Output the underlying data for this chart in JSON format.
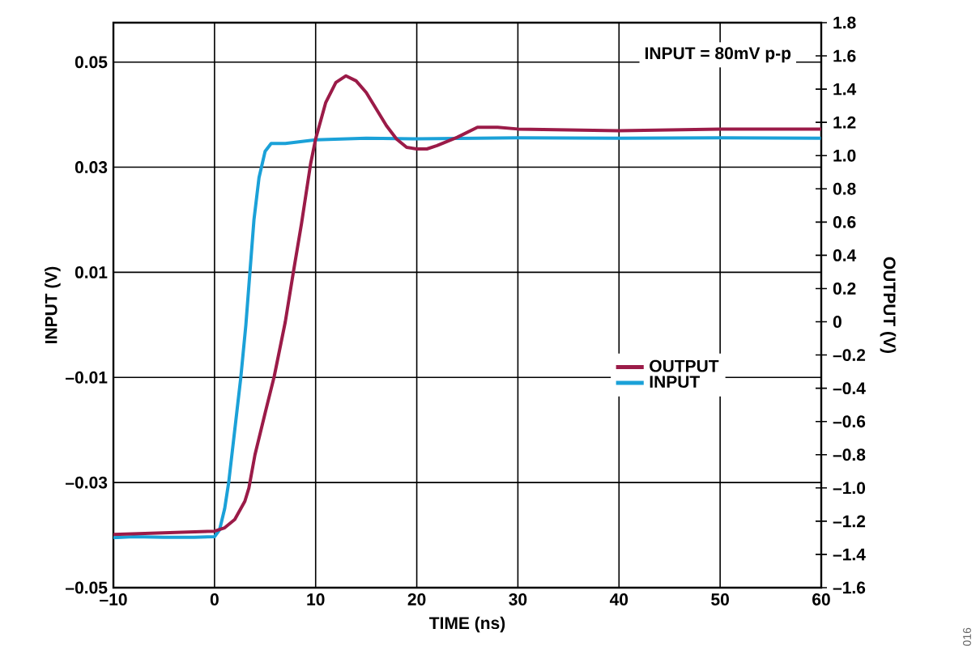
{
  "chart_data": {
    "type": "line",
    "xlabel": "TIME (ns)",
    "ylabel": "INPUT (V)",
    "y2label": "OUTPUT (V)",
    "annotations": [
      "INPUT = 80mV p-p",
      "016"
    ],
    "series": [
      {
        "name": "OUTPUT",
        "color": "#9b1b48",
        "axis": "y2",
        "x": [
          -10,
          -5,
          0,
          1,
          2,
          3,
          3.4,
          4,
          5,
          5.9,
          7,
          7.8,
          8.6,
          9.5,
          10,
          11,
          12,
          13,
          14,
          15,
          16,
          17,
          18,
          19,
          20,
          21,
          22,
          24,
          26,
          28,
          30,
          40,
          50,
          60
        ],
        "values": [
          -1.28,
          -1.27,
          -1.26,
          -1.24,
          -1.19,
          -1.08,
          -1.0,
          -0.8,
          -0.55,
          -0.33,
          0.0,
          0.3,
          0.59,
          0.95,
          1.1,
          1.32,
          1.44,
          1.48,
          1.45,
          1.38,
          1.28,
          1.18,
          1.1,
          1.05,
          1.04,
          1.04,
          1.06,
          1.11,
          1.17,
          1.17,
          1.16,
          1.15,
          1.16,
          1.16
        ]
      },
      {
        "name": "INPUT",
        "color": "#1ba1d8",
        "axis": "y",
        "x": [
          -10,
          -8,
          -5,
          -2,
          0,
          0.5,
          1,
          1.4,
          2,
          2.6,
          3.1,
          3.5,
          3.9,
          4.4,
          5,
          5.6,
          7,
          10,
          15,
          20,
          30,
          40,
          50,
          60
        ],
        "values": [
          -0.0405,
          -0.0403,
          -0.0404,
          -0.0404,
          -0.0403,
          -0.039,
          -0.035,
          -0.03,
          -0.02,
          -0.01,
          0.0,
          0.01,
          0.02,
          0.028,
          0.033,
          0.0345,
          0.0345,
          0.0352,
          0.0355,
          0.0354,
          0.0356,
          0.0355,
          0.0356,
          0.0355
        ]
      }
    ],
    "xlim": [
      -10,
      60
    ],
    "ylim": [
      -0.05,
      0.0575
    ],
    "y2lim": [
      -1.6,
      1.8
    ],
    "xticks": [
      {
        "value": -10,
        "label": "–10"
      },
      0,
      10,
      20,
      30,
      40,
      50,
      60
    ],
    "yticks": [
      {
        "value": -0.05,
        "label": "–0.05"
      },
      {
        "value": -0.03,
        "label": "–0.03"
      },
      {
        "value": -0.01,
        "label": "–0.01"
      },
      0.01,
      0.03,
      0.05
    ],
    "y2ticks": [
      {
        "value": -1.6,
        "label": "–1.6"
      },
      {
        "value": -1.4,
        "label": "–1.4"
      },
      {
        "value": -1.2,
        "label": "–1.2"
      },
      {
        "value": -1.0,
        "label": "–1.0"
      },
      {
        "value": -0.8,
        "label": "–0.8"
      },
      {
        "value": -0.6,
        "label": "–0.6"
      },
      {
        "value": -0.4,
        "label": "–0.4"
      },
      {
        "value": -0.2,
        "label": "–0.2"
      },
      0,
      0.2,
      0.4,
      0.6,
      0.8,
      {
        "value": 1.0,
        "label": "1.0"
      },
      1.2,
      1.4,
      1.6,
      1.8
    ],
    "grid": true,
    "legend": "right",
    "line_style": "solid"
  }
}
